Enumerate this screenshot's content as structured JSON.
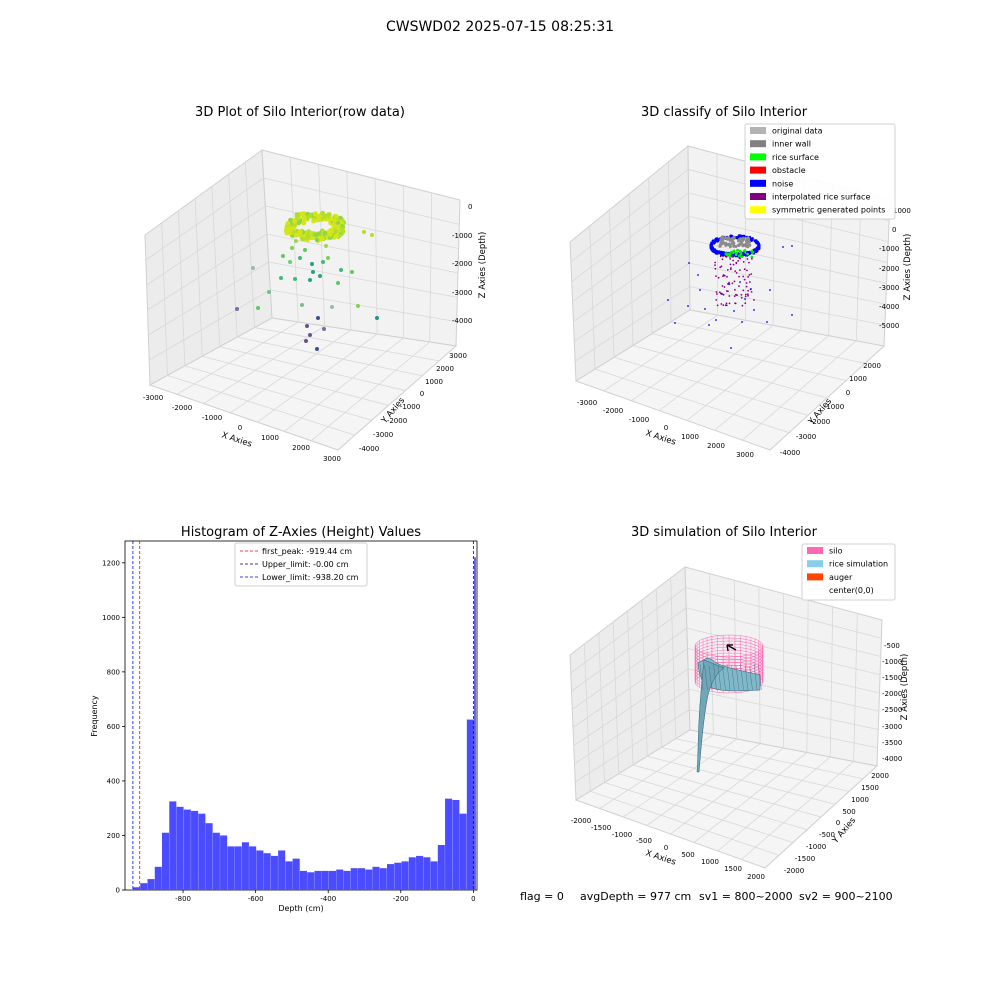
{
  "figure": {
    "suptitle": "CWSWD02 2025-07-15 08:25:31"
  },
  "panels": {
    "p1": {
      "title": "3D Plot of Silo Interior(row data)",
      "xlabel": "X Axies",
      "ylabel": "Y Axies",
      "zlabel": "Z Axies (Depth)",
      "xticks": [
        "-3000",
        "-2000",
        "-1000",
        "0",
        "1000",
        "2000",
        "3000"
      ],
      "yticks": [
        "3000",
        "2000",
        "1000",
        "0",
        "-1000",
        "-2000",
        "-3000",
        "-4000"
      ],
      "zticks": [
        "0",
        "-1000",
        "-2000",
        "-3000",
        "-4000"
      ]
    },
    "p2": {
      "title": "3D classify of Silo Interior",
      "xlabel": "X Axies",
      "ylabel": "Y Axies",
      "zlabel": "Z Axies (Depth)",
      "xticks": [
        "-3000",
        "-2000",
        "-1000",
        "0",
        "1000",
        "2000",
        "3000"
      ],
      "yticks": [
        "2000",
        "1000",
        "0",
        "-1000",
        "-2000",
        "-3000",
        "-4000"
      ],
      "zticks": [
        "1000",
        "0",
        "-1000",
        "-2000",
        "-3000",
        "-4000",
        "-5000"
      ],
      "legend": [
        {
          "label": "original data",
          "color": "#b3b3b3"
        },
        {
          "label": "inner wall",
          "color": "#808080"
        },
        {
          "label": "rice surface",
          "color": "#00ff00"
        },
        {
          "label": "obstacle",
          "color": "#ff0000"
        },
        {
          "label": "noise",
          "color": "#0000ff"
        },
        {
          "label": "interpolated rice surface",
          "color": "#800080"
        },
        {
          "label": "symmetric generated points",
          "color": "#ffff00"
        }
      ]
    },
    "p4": {
      "title": "3D simulation of Silo Interior",
      "xlabel": "X Axies",
      "ylabel": "Y Axies",
      "zlabel": "Z Axies (Depth)",
      "xticks": [
        "-2000",
        "-1500",
        "-1000",
        "-500",
        "0",
        "500",
        "1000",
        "1500",
        "2000"
      ],
      "yticks": [
        "2000",
        "1500",
        "1000",
        "500",
        "0",
        "-500",
        "-1000",
        "-1500",
        "-2000"
      ],
      "zticks": [
        "-500",
        "-1000",
        "-1500",
        "-2000",
        "-2500",
        "-3000",
        "-3500",
        "-4000"
      ],
      "legend": [
        {
          "label": "silo",
          "color": "#ff69b4"
        },
        {
          "label": "rice simulation",
          "color": "#87ceeb"
        },
        {
          "label": "auger",
          "color": "#ff4500"
        },
        {
          "label": "center(0,0)",
          "color": ""
        }
      ]
    },
    "footer": {
      "flag": "flag = 0",
      "avg": "avgDepth = 977 cm",
      "sv1": "sv1 = 800~2000",
      "sv2": "sv2 = 900~2100"
    }
  },
  "chart_data": [
    {
      "type": "scatter3d",
      "title": "3D Plot of Silo Interior(row data)",
      "xlabel": "X Axies",
      "ylabel": "Y Axies",
      "zlabel": "Z Axies (Depth)",
      "xlim": [
        -3000,
        3000
      ],
      "ylim": [
        -4000,
        3000
      ],
      "zlim": [
        -4500,
        0
      ]
    },
    {
      "type": "scatter3d",
      "title": "3D classify of Silo Interior",
      "xlabel": "X Axies",
      "ylabel": "Y Axies",
      "zlabel": "Z Axies (Depth)",
      "xlim": [
        -3000,
        3000
      ],
      "ylim": [
        -4000,
        2000
      ],
      "zlim": [
        -5000,
        1000
      ],
      "legend_position": "top-right"
    },
    {
      "type": "bar",
      "title": "Histogram of Z-Axies (Height) Values",
      "xlabel": "Depth (cm)",
      "ylabel": "Frequency",
      "xlim": [
        -960,
        10
      ],
      "ylim": [
        0,
        1280
      ],
      "xticks": [
        -800,
        -600,
        -400,
        -200,
        0
      ],
      "yticks": [
        0,
        200,
        400,
        600,
        800,
        1000,
        1200
      ],
      "bin_width": 20,
      "bin_left_edges": [
        -938,
        -918,
        -898,
        -878,
        -858,
        -838,
        -818,
        -798,
        -778,
        -758,
        -738,
        -718,
        -698,
        -678,
        -658,
        -638,
        -618,
        -598,
        -578,
        -558,
        -538,
        -518,
        -498,
        -478,
        -458,
        -438,
        -418,
        -398,
        -378,
        -358,
        -338,
        -318,
        -298,
        -278,
        -258,
        -238,
        -218,
        -198,
        -178,
        -158,
        -138,
        -118,
        -98,
        -78,
        -58,
        -38,
        -18
      ],
      "values": [
        10,
        25,
        40,
        85,
        210,
        325,
        305,
        295,
        290,
        280,
        245,
        210,
        200,
        160,
        160,
        175,
        160,
        145,
        135,
        125,
        145,
        105,
        115,
        70,
        65,
        70,
        70,
        70,
        75,
        70,
        80,
        80,
        75,
        85,
        80,
        95,
        100,
        105,
        120,
        125,
        120,
        105,
        165,
        335,
        330,
        280,
        625
      ],
      "last_bin_value": 1220,
      "legend": [
        "first_peak: -919.44 cm",
        "Upper_limit: -0.00 cm",
        "Lower_limit: -938.20 cm"
      ],
      "vlines": [
        {
          "label": "first_peak: -919.44 cm",
          "x": -919.44,
          "color": "#ff0000"
        },
        {
          "label": "Upper_limit: -0.00 cm",
          "x": 0.0,
          "color": "#00008b"
        },
        {
          "label": "Lower_limit: -938.20 cm",
          "x": -938.2,
          "color": "#0000ff"
        }
      ],
      "bar_color": "#4b4bff"
    },
    {
      "type": "surface3d",
      "title": "3D simulation of Silo Interior",
      "xlabel": "X Axies",
      "ylabel": "Y Axies",
      "zlabel": "Z Axies (Depth)",
      "xlim": [
        -2000,
        2000
      ],
      "ylim": [
        -2000,
        2000
      ],
      "zlim": [
        -4000,
        0
      ],
      "legend_position": "top-right"
    }
  ]
}
